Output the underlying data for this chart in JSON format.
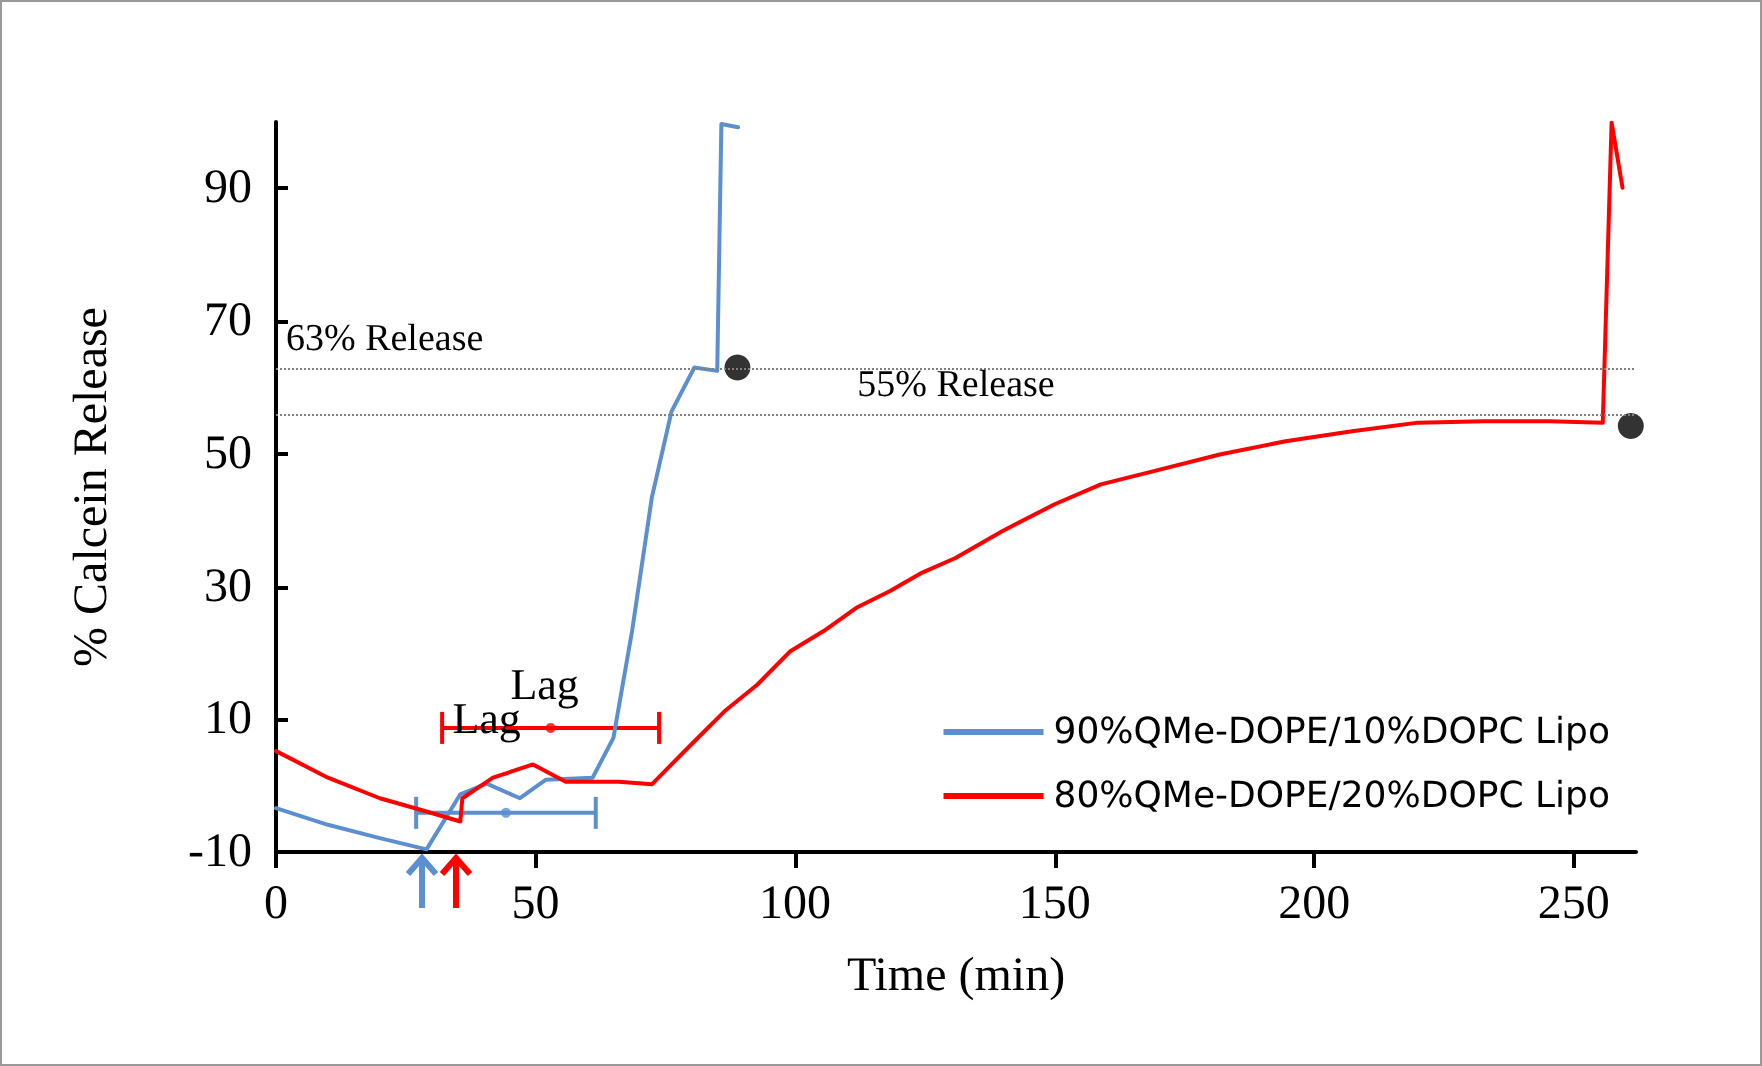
{
  "chart_data": {
    "type": "line",
    "xlabel": "Time (min)",
    "ylabel": "% Calcein Release",
    "xlim": [
      0,
      262
    ],
    "xticks": [
      0,
      50,
      100,
      150,
      200,
      250
    ],
    "ylim": [
      -10,
      100
    ],
    "yticks": [
      -10,
      10,
      30,
      50,
      70,
      90
    ],
    "grid": false,
    "legend": "bottom right",
    "marker": "none",
    "line_style": "solid",
    "series": [
      {
        "name": "90%QMe-DOPE/10%DOPC Lipo",
        "color": "#5b8fd0",
        "x": [
          0,
          10,
          20,
          29,
          35.5,
          40.6,
          47,
          52,
          61,
          65,
          68.6,
          72.4,
          76.2,
          80.6,
          85,
          85.8,
          89
        ],
        "values": [
          -3.4,
          -5.9,
          -7.9,
          -9.6,
          -1.3,
          0.3,
          -1.9,
          0.9,
          1.2,
          7.2,
          23.3,
          43.4,
          56.4,
          63,
          62.5,
          99.7,
          99.2
        ]
      },
      {
        "name": "80%QMe-DOPE/20%DOPC Lipo",
        "color": "#ff0000",
        "x": [
          0,
          10,
          20,
          29,
          35.5,
          35.9,
          41.8,
          49.5,
          55.8,
          66,
          72.4,
          80,
          86.4,
          92.7,
          99,
          105.5,
          111.8,
          118.2,
          124.5,
          130.9,
          139.8,
          150,
          158.9,
          169.1,
          181.8,
          194.5,
          207.3,
          220,
          232.7,
          245.4,
          255.6,
          257.3,
          259.4
        ],
        "values": [
          5.2,
          1.2,
          -1.9,
          -3.9,
          -5.4,
          -1.9,
          1.2,
          3.2,
          0.6,
          0.6,
          0.2,
          6.2,
          11.2,
          15.2,
          20.2,
          23.3,
          26.8,
          29.3,
          32.1,
          34.3,
          38.3,
          42.4,
          45.4,
          47.4,
          49.9,
          51.9,
          53.4,
          54.7,
          54.9,
          54.9,
          54.7,
          99.9,
          90.1
        ]
      },
      {
        "type": "scatter",
        "color": "#000000",
        "marker": "circle",
        "x": [
          88.9,
          261
        ],
        "values": [
          63,
          54.2
        ]
      },
      {
        "type": "scatter",
        "color": "#5b8fd0",
        "marker": "circle",
        "x": [
          44.3
        ],
        "values": [
          -4.1
        ],
        "xerrors": [
          17.3
        ]
      },
      {
        "type": "scatter",
        "color": "#ff0000",
        "marker": "circle",
        "x": [
          52.9
        ],
        "values": [
          8.7
        ],
        "xerrors": [
          20.9
        ]
      }
    ],
    "ref_lines": [
      {
        "axis": "y",
        "value": 63,
        "label": "63% Release",
        "color": "#808080",
        "line_style": "dotted"
      },
      {
        "axis": "y",
        "value": 56,
        "label": "55% Release",
        "color": "#808080",
        "line_style": "dotted"
      }
    ],
    "annotations": [
      "Lag",
      "Lag"
    ]
  }
}
